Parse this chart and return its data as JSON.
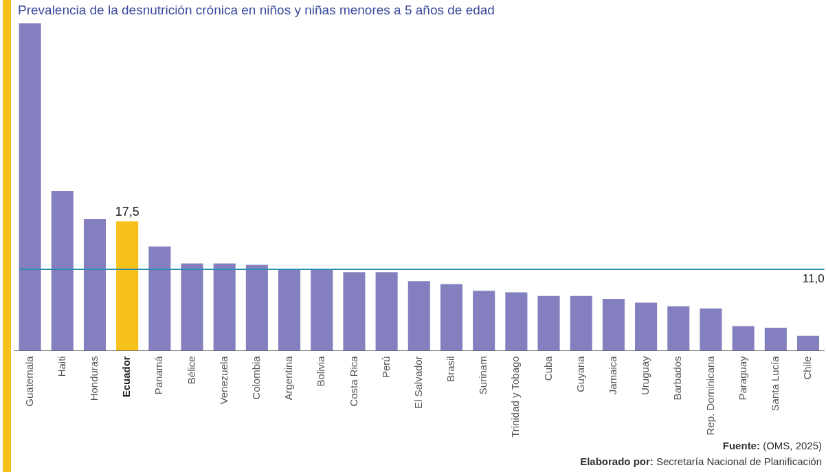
{
  "chart_data": {
    "type": "bar",
    "title": "Prevalencia de la desnutrición crónica en niños y niñas menores a 5 años de edad",
    "categories": [
      "Guatemala",
      "Haiti",
      "Honduras",
      "Ecuador",
      "Panamá",
      "Bélice",
      "Venezuela",
      "Colombia",
      "Argentina",
      "Bolivia",
      "Costa Rica",
      "Perú",
      "El Salvador",
      "Brasil",
      "Surinam",
      "Trinidad y Tobago",
      "Cuba",
      "Guyana",
      "Jamaica",
      "Uruguay",
      "Barbados",
      "Rep. Dominicana",
      "Paraguay",
      "Santa Lucía",
      "Chile"
    ],
    "values": [
      44.3,
      21.6,
      17.8,
      17.5,
      14.1,
      11.8,
      11.8,
      11.6,
      11.0,
      11.0,
      10.6,
      10.6,
      9.4,
      9.0,
      8.1,
      7.9,
      7.4,
      7.4,
      7.0,
      6.5,
      6.0,
      5.7,
      3.3,
      3.1,
      2.0
    ],
    "colors": [
      "#8480c0",
      "#8480c0",
      "#8480c0",
      "#f5c11a",
      "#8480c0",
      "#8480c0",
      "#8480c0",
      "#8480c0",
      "#8480c0",
      "#8480c0",
      "#8480c0",
      "#8480c0",
      "#8480c0",
      "#8480c0",
      "#8480c0",
      "#8480c0",
      "#8480c0",
      "#8480c0",
      "#8480c0",
      "#8480c0",
      "#8480c0",
      "#8480c0",
      "#8480c0",
      "#8480c0",
      "#8480c0"
    ],
    "value_labels": [
      null,
      null,
      null,
      "17,5",
      null,
      null,
      null,
      null,
      null,
      null,
      null,
      null,
      null,
      null,
      null,
      null,
      null,
      null,
      null,
      null,
      null,
      null,
      null,
      null,
      null
    ],
    "ylim": [
      0,
      44.3
    ],
    "tick_labels": "x",
    "ref_lines": [
      {
        "axis": "y",
        "value": 11.0,
        "label": "11,0",
        "color": "#2a8fae"
      }
    ],
    "grid": false,
    "legend": false,
    "annotations": [
      "Fuente: (OMS, 2025)",
      "Elaborado por: Secretaría Nacional de Planificación"
    ]
  }
}
